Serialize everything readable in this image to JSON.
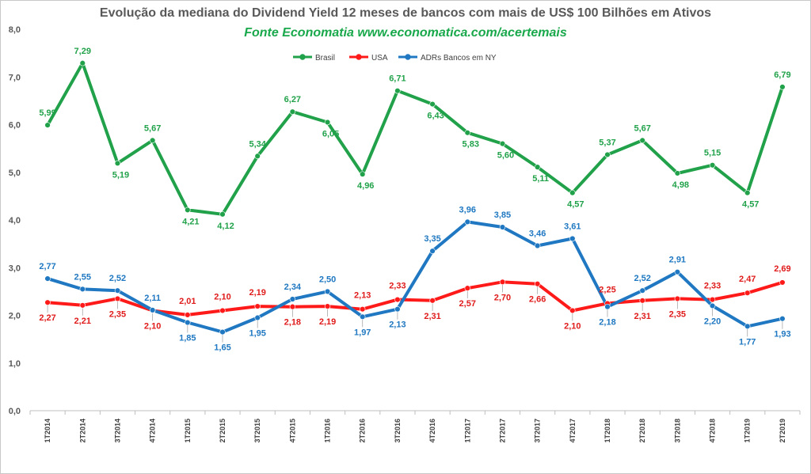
{
  "chart_data": {
    "type": "line",
    "title": "Evolução da mediana do Dividend Yield 12 meses de bancos com mais de US$ 100 Bilhões em Ativos",
    "subtitle": "Fonte Economatia www.economatica.com/acertemais",
    "xlabel": "",
    "ylabel": "",
    "ylim": [
      0,
      8
    ],
    "yticks": [
      "0,0",
      "1,0",
      "2,0",
      "3,0",
      "4,0",
      "5,0",
      "6,0",
      "7,0",
      "8,0"
    ],
    "grid": false,
    "legend_position": "top-center",
    "categories": [
      "1T2014",
      "2T2014",
      "3T2014",
      "4T2014",
      "1T2015",
      "2T2015",
      "3T2015",
      "4T2015",
      "1T2016",
      "2T2016",
      "3T2016",
      "4T2016",
      "1T2017",
      "2T2017",
      "3T2017",
      "4T2017",
      "1T2018",
      "2T2018",
      "3T2018",
      "4T2018",
      "1T2019",
      "2T2019"
    ],
    "series": [
      {
        "name": "Brasil",
        "color": "#21a24a",
        "values": [
          5.99,
          7.29,
          5.19,
          5.67,
          4.21,
          4.12,
          5.34,
          6.27,
          6.05,
          4.96,
          6.71,
          6.43,
          5.83,
          5.6,
          5.11,
          4.57,
          5.37,
          5.67,
          4.98,
          5.15,
          4.57,
          6.79
        ],
        "labels": [
          "5,99",
          "7,29",
          "5,19",
          "5,67",
          "4,21",
          "4,12",
          "5,34",
          "6,27",
          "6,05",
          "4,96",
          "6,71",
          "6,43",
          "5,83",
          "5,60",
          "5,11",
          "4,57",
          "5,37",
          "5,67",
          "4,98",
          "5,15",
          "4,57",
          "6,79"
        ]
      },
      {
        "name": "USA",
        "color": "#ff1a1a",
        "values": [
          2.27,
          2.21,
          2.35,
          2.1,
          2.01,
          2.1,
          2.19,
          2.18,
          2.19,
          2.13,
          2.33,
          2.31,
          2.57,
          2.7,
          2.66,
          2.1,
          2.25,
          2.31,
          2.35,
          2.33,
          2.47,
          2.69
        ],
        "labels": [
          "2,27",
          "2,21",
          "2,35",
          "2,10",
          "2,01",
          "2,10",
          "2,19",
          "2,18",
          "2,19",
          "2,13",
          "2,33",
          "2,31",
          "2,57",
          "2,70",
          "2,66",
          "2,10",
          "2,25",
          "2,31",
          "2,35",
          "2,33",
          "2,47",
          "2,69"
        ]
      },
      {
        "name": "ADRs Bancos em NY",
        "color": "#1f78c1",
        "values": [
          2.77,
          2.55,
          2.52,
          2.11,
          1.85,
          1.65,
          1.95,
          2.34,
          2.5,
          1.97,
          2.13,
          3.35,
          3.96,
          3.85,
          3.46,
          3.61,
          2.18,
          2.52,
          2.91,
          2.2,
          1.77,
          1.93
        ],
        "labels": [
          "2,77",
          "2,55",
          "2,52",
          "2,11",
          "1,85",
          "1,65",
          "1,95",
          "2,34",
          "2,50",
          "1,97",
          "2,13",
          "3,35",
          "3,96",
          "3,85",
          "3,46",
          "3,61",
          "2,18",
          "2,52",
          "2,91",
          "2,20",
          "1,77",
          "1,93"
        ]
      }
    ]
  }
}
